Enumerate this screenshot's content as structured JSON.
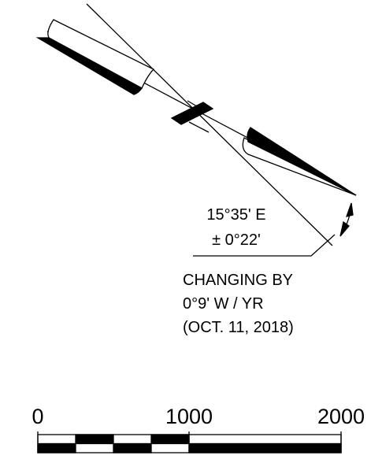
{
  "declination": {
    "angle": "15°35' E",
    "tolerance": "± 0°22'",
    "change_label": "CHANGING BY",
    "change_rate": "0°9' W / YR",
    "date": "(OCT. 11, 2018)"
  },
  "scale_bar": {
    "labels": [
      "0",
      "1000",
      "2000"
    ]
  }
}
